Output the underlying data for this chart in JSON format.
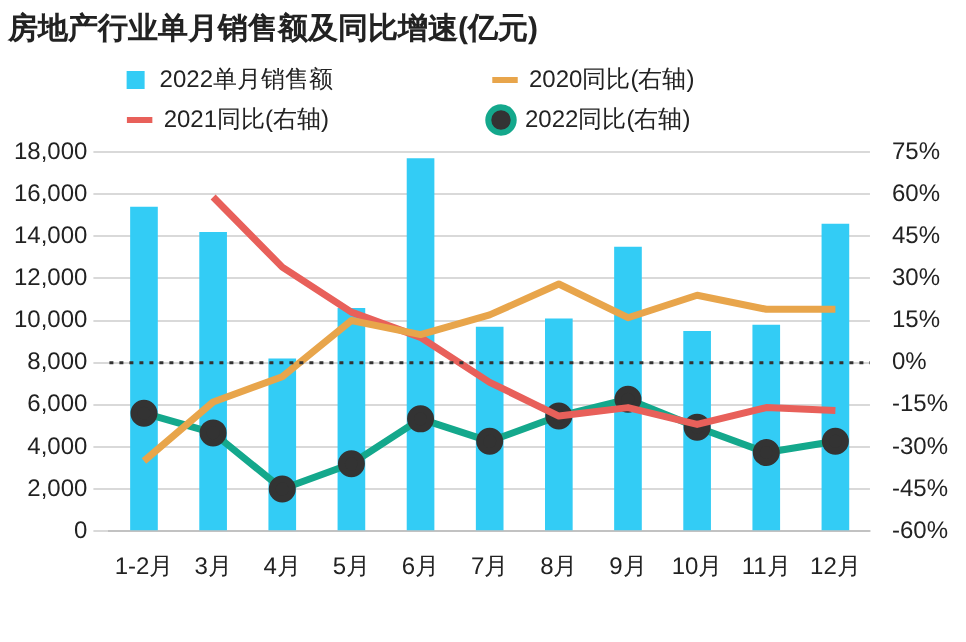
{
  "chart_data": {
    "type": "bar",
    "title": "房地产行业单月销售额及同比增速(亿元)",
    "categories": [
      "1-2月",
      "3月",
      "4月",
      "5月",
      "6月",
      "7月",
      "8月",
      "9月",
      "10月",
      "11月",
      "12月"
    ],
    "series": [
      {
        "name": "2022单月销售额",
        "color": "#33ccf5",
        "values": [
          15400,
          14200,
          8200,
          10600,
          17700,
          9700,
          10100,
          13500,
          9500,
          9800,
          14600
        ]
      },
      {
        "name": "2020同比(右轴)",
        "type": "line",
        "axis": "y2",
        "color": "#e8a54b",
        "marker": "none",
        "values": [
          -35,
          -14,
          -5,
          15,
          10,
          17,
          28,
          16,
          24,
          19,
          19
        ]
      },
      {
        "name": "2021同比(右轴)",
        "type": "line",
        "axis": "y2",
        "color": "#e8605a",
        "marker": "none",
        "values": [
          null,
          59,
          34,
          18,
          9,
          -7,
          -19,
          -16,
          -22,
          -16,
          -17
        ]
      },
      {
        "name": "2022同比(右轴)",
        "type": "line",
        "axis": "y2",
        "color": "#14a88c",
        "marker": "circle",
        "values": [
          -18,
          -25,
          -45,
          -36,
          -20,
          -28,
          -19,
          -13,
          -23,
          -32,
          -28
        ]
      }
    ],
    "ylim": [
      0,
      18000
    ],
    "yticks": [
      0,
      {
        "value": 2000,
        "label": "2,000"
      },
      {
        "value": 4000,
        "label": "4,000"
      },
      {
        "value": 6000,
        "label": "6,000"
      },
      {
        "value": 8000,
        "label": "8,000"
      },
      {
        "value": 10000,
        "label": "10,000"
      },
      {
        "value": 12000,
        "label": "12,000"
      },
      {
        "value": 14000,
        "label": "14,000"
      },
      {
        "value": 16000,
        "label": "16,000"
      },
      {
        "value": 18000,
        "label": "18,000"
      }
    ],
    "y2lim": [
      -60,
      75
    ],
    "y2ticks": [
      {
        "value": -60,
        "label": "-60%"
      },
      {
        "value": -45,
        "label": "-45%"
      },
      {
        "value": -30,
        "label": "-30%"
      },
      {
        "value": -15,
        "label": "-15%"
      },
      {
        "value": 0,
        "label": "0%"
      },
      {
        "value": 15,
        "label": "15%"
      },
      {
        "value": 30,
        "label": "30%"
      },
      {
        "value": 45,
        "label": "45%"
      },
      {
        "value": 60,
        "label": "60%"
      },
      {
        "value": 75,
        "label": "75%"
      }
    ],
    "ref_lines": [
      {
        "axis": "y2",
        "value": 0,
        "color": "#333333",
        "line_style": "dotted"
      }
    ],
    "grid": "y",
    "legend": "top"
  }
}
